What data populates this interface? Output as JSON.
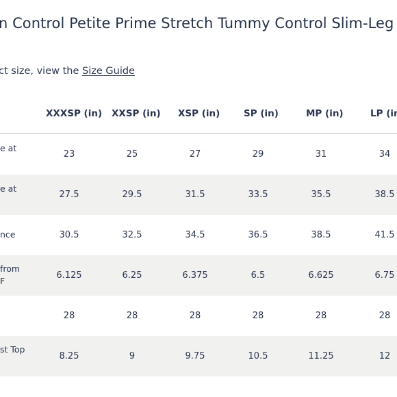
{
  "title": "n Control Petite Prime Stretch Tummy Control Slim-Leg Pa",
  "guide": {
    "prefix": "ct size, view the ",
    "link_label": "Size Guide"
  },
  "columns": [
    "XXXSP (in)",
    "XXSP (in)",
    "XSP (in)",
    "SP (in)",
    "MP (in)",
    "LP (in)"
  ],
  "rows": [
    {
      "label_lines": [
        "e at",
        ""
      ],
      "values": [
        "23",
        "25",
        "27",
        "29",
        "31",
        "34"
      ]
    },
    {
      "label_lines": [
        "e at",
        ""
      ],
      "values": [
        "27.5",
        "29.5",
        "31.5",
        "33.5",
        "35.5",
        "38.5"
      ]
    },
    {
      "label_lines": [
        "nce"
      ],
      "values": [
        "30.5",
        "32.5",
        "34.5",
        "36.5",
        "38.5",
        "41.5"
      ]
    },
    {
      "label_lines": [
        "from",
        "F"
      ],
      "values": [
        "6.125",
        "6.25",
        "6.375",
        "6.5",
        "6.625",
        "6.75"
      ]
    },
    {
      "label_lines": [
        ""
      ],
      "values": [
        "28",
        "28",
        "28",
        "28",
        "28",
        "28"
      ]
    },
    {
      "label_lines": [
        "st Top",
        ""
      ],
      "values": [
        "8.25",
        "9",
        "9.75",
        "10.5",
        "11.25",
        "12"
      ]
    }
  ]
}
